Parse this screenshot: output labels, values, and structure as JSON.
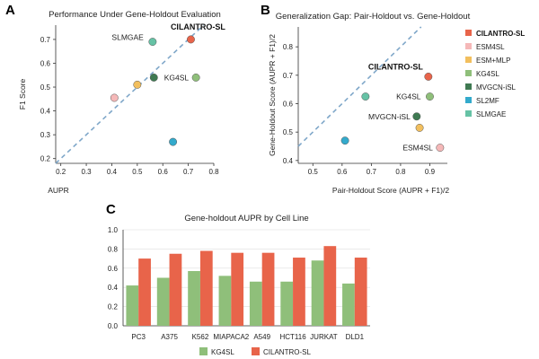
{
  "panels": {
    "a_letter": "A",
    "b_letter": "B",
    "c_letter": "C"
  },
  "colors": {
    "CILANTRO-SL": "#e8644a",
    "ESM4SL": "#f5b8b8",
    "ESM+MLP": "#f2bf5e",
    "KG4SL": "#8fbf7a",
    "MVGCN-iSL": "#3f7a52",
    "SL2MF": "#33aacc",
    "SLMGAE": "#66c2a5",
    "diagonal": "#7fa7c9"
  },
  "chart_data": [
    {
      "id": "A",
      "type": "scatter",
      "title": "Performance Under Gene-Holdout Evaluation",
      "xlabel": "AUPR",
      "ylabel": "F1 Score",
      "xlim": [
        0.18,
        0.8
      ],
      "ylim": [
        0.18,
        0.76
      ],
      "xticks": [
        0.2,
        0.3,
        0.4,
        0.5,
        0.6,
        0.7,
        0.8
      ],
      "yticks": [
        0.2,
        0.3,
        0.4,
        0.5,
        0.6,
        0.7
      ],
      "diagonal": true,
      "points": [
        {
          "name": "CILANTRO-SL",
          "x": 0.71,
          "y": 0.7,
          "label": "CILANTRO-SL",
          "bold": true
        },
        {
          "name": "ESM4SL",
          "x": 0.41,
          "y": 0.455,
          "label": ""
        },
        {
          "name": "ESM+MLP",
          "x": 0.5,
          "y": 0.51,
          "label": ""
        },
        {
          "name": "KG4SL",
          "x": 0.73,
          "y": 0.54,
          "label": "KG4SL"
        },
        {
          "name": "MVGCN-iSL",
          "x": 0.565,
          "y": 0.54,
          "label": ""
        },
        {
          "name": "SL2MF",
          "x": 0.64,
          "y": 0.27,
          "label": ""
        },
        {
          "name": "SLMGAE",
          "x": 0.56,
          "y": 0.69,
          "label": "SLMGAE"
        }
      ]
    },
    {
      "id": "B",
      "type": "scatter",
      "title": "Generalization Gap: Pair-Holdout vs. Gene-Holdout",
      "xlabel": "Pair-Holdout Score (AUPR + F1)/2",
      "ylabel": "Gene-Holdout Score (AUPR + F1)/2",
      "xlim": [
        0.45,
        0.96
      ],
      "ylim": [
        0.39,
        0.87
      ],
      "xticks": [
        0.5,
        0.6,
        0.7,
        0.8,
        0.9
      ],
      "yticks": [
        0.4,
        0.5,
        0.6,
        0.7,
        0.8
      ],
      "diagonal": true,
      "points": [
        {
          "name": "CILANTRO-SL",
          "x": 0.895,
          "y": 0.695,
          "label": "CILANTRO-SL",
          "bold": true
        },
        {
          "name": "ESM4SL",
          "x": 0.935,
          "y": 0.445,
          "label": "ESM4SL"
        },
        {
          "name": "ESM+MLP",
          "x": 0.865,
          "y": 0.515,
          "label": ""
        },
        {
          "name": "KG4SL",
          "x": 0.9,
          "y": 0.625,
          "label": "KG4SL"
        },
        {
          "name": "MVGCN-iSL",
          "x": 0.855,
          "y": 0.555,
          "label": "MVGCN-iSL"
        },
        {
          "name": "SL2MF",
          "x": 0.61,
          "y": 0.47,
          "label": ""
        },
        {
          "name": "SLMGAE",
          "x": 0.68,
          "y": 0.625,
          "label": ""
        }
      ],
      "legend": [
        "CILANTRO-SL",
        "ESM4SL",
        "ESM+MLP",
        "KG4SL",
        "MVGCN-iSL",
        "SL2MF",
        "SLMGAE"
      ],
      "legend_position": "right"
    },
    {
      "id": "C",
      "type": "bar",
      "title": "Gene-holdout AUPR by Cell Line",
      "categories": [
        "PC3",
        "A375",
        "K562",
        "MIAPACA2",
        "A549",
        "HCT116",
        "JURKAT",
        "DLD1"
      ],
      "series": [
        {
          "name": "KG4SL",
          "values": [
            0.42,
            0.5,
            0.57,
            0.52,
            0.46,
            0.46,
            0.68,
            0.44
          ]
        },
        {
          "name": "CILANTRO-SL",
          "values": [
            0.7,
            0.75,
            0.78,
            0.76,
            0.76,
            0.71,
            0.83,
            0.71
          ]
        }
      ],
      "ylim": [
        0,
        1.0
      ],
      "yticks": [
        0.0,
        0.2,
        0.4,
        0.6,
        0.8,
        1.0
      ],
      "grid": true,
      "legend_position": "bottom"
    }
  ]
}
